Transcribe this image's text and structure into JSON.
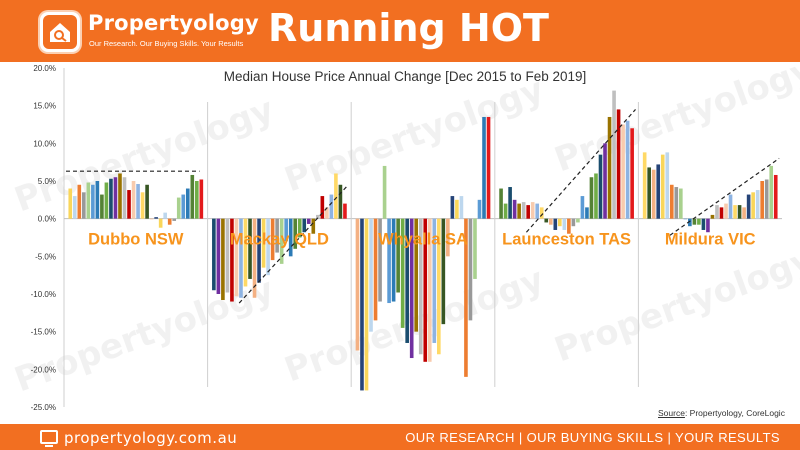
{
  "header": {
    "brand_name": "Propertyology",
    "brand_tagline": "Our Research. Our Buying Skills. Your Results",
    "title": "Running HOT"
  },
  "footer": {
    "website": "propertyology.com.au",
    "slogan": "OUR RESEARCH | OUR BUYING SKILLS | YOUR RESULTS"
  },
  "source": {
    "label": "Source",
    "text": ": Propertyology, CoreLogic"
  },
  "watermark_text": "Propertyology",
  "colors": {
    "brand": "#f26f21",
    "label_orange": "#f7941d",
    "trend_line": "#222222",
    "bar_palette": [
      "#f9d65a",
      "#999999",
      "#2c7bb6",
      "#1a4d6e",
      "#bfbfbf",
      "#8db3e2",
      "#f4b183",
      "#bdd7ee",
      "#a9d18e",
      "#548235",
      "#7030a0",
      "#c00000",
      "#ffd966",
      "#264478",
      "#ed7d31",
      "#5b9bd5",
      "#70ad47",
      "#997300",
      "#f8cbad",
      "#375623"
    ]
  },
  "chart_data": {
    "type": "bar",
    "title": "Median House Price Annual Change [Dec 2015 to Feb 2019]",
    "y_ticks": [
      "20.0%",
      "15.0%",
      "10.0%",
      "5.0%",
      "0.0%",
      "-5.0%",
      "-10.0%",
      "-15.0%",
      "-20.0%",
      "-25.0%"
    ],
    "ylim": [
      -25,
      20
    ],
    "grid": false,
    "series": [
      {
        "name": "Dubbo NSW",
        "values": [
          4.0,
          3.0,
          4.5,
          3.5,
          4.8,
          4.5,
          5.0,
          3.2,
          4.8,
          5.3,
          5.5,
          6.0,
          5.5,
          3.8,
          5.0,
          4.6,
          3.5,
          4.5,
          0.0,
          0.2,
          -1.2,
          0.8,
          -0.8,
          -0.3,
          2.8,
          3.2,
          4.0,
          5.8,
          5.0,
          5.2
        ],
        "trend": {
          "type": "flat",
          "level": 6.3
        }
      },
      {
        "name": "Mackay QLD",
        "values": [
          -9.5,
          -10.0,
          -10.8,
          -9.8,
          -11.0,
          -10.3,
          -10.5,
          -9.0,
          -8.0,
          -10.5,
          -8.5,
          -6.5,
          -7.5,
          -5.5,
          -4.5,
          -6.0,
          -3.0,
          -5.0,
          -4.0,
          -2.5,
          -1.8,
          -0.7,
          -2.0,
          0.5,
          3.0,
          1.5,
          3.2,
          6.0,
          4.5,
          2.0
        ],
        "trend": {
          "type": "diagonal",
          "from": -11.2,
          "to": 4.5
        }
      },
      {
        "name": "Whyalla SA",
        "values": [
          -17.5,
          -22.8,
          -22.8,
          -15.0,
          -13.5,
          -11.0,
          7.0,
          -11.2,
          -11.0,
          -9.8,
          -14.5,
          -16.5,
          -18.5,
          -15.0,
          -18.0,
          -19.0,
          -19.0,
          -16.5,
          -18.0,
          -14.0,
          -5.0,
          3.0,
          2.5,
          3.0,
          -21.0,
          -13.5,
          -8.0,
          2.5,
          13.5,
          13.5
        ],
        "trend": null
      },
      {
        "name": "Launceston TAS",
        "values": [
          4.0,
          2.0,
          4.2,
          2.5,
          2.0,
          2.2,
          1.8,
          2.2,
          2.0,
          1.5,
          -0.5,
          -0.8,
          -1.5,
          -1.0,
          -1.5,
          -2.0,
          -1.0,
          -0.5,
          3.0,
          1.5,
          5.5,
          6.0,
          8.5,
          10.0,
          13.5,
          17.0,
          14.5,
          12.5,
          13.0,
          12.0
        ],
        "trend": {
          "type": "diagonal",
          "from": -1.8,
          "to": 14.5
        }
      },
      {
        "name": "Mildura VIC",
        "values": [
          8.8,
          6.8,
          6.5,
          7.2,
          8.5,
          8.8,
          4.5,
          4.2,
          4.0,
          0.0,
          -1.0,
          -0.8,
          -0.8,
          -1.5,
          -1.8,
          0.5,
          1.8,
          1.5,
          2.0,
          3.2,
          1.8,
          1.8,
          1.5,
          3.2,
          3.5,
          3.8,
          5.0,
          5.2,
          7.0,
          5.8
        ],
        "trend": {
          "type": "diagonal",
          "from": -2.2,
          "to": 8.0
        }
      }
    ]
  }
}
